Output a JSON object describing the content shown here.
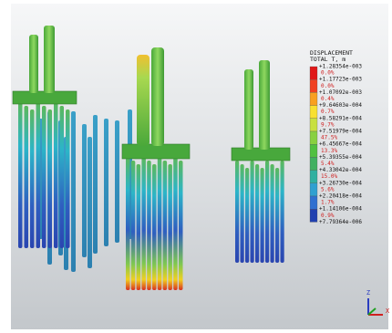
{
  "legend": {
    "title": "DISPLACEMENT",
    "subtitle": "TOTAL T, m",
    "levels": [
      "+1.28354e-003",
      "+1.17723e-003",
      "+1.07092e-003",
      "+9.64603e-004",
      "+8.58291e-004",
      "+7.51979e-004",
      "+6.45667e-004",
      "+5.39355e-004",
      "+4.33042e-004",
      "+3.26730e-004",
      "+2.20418e-004",
      "+1.14106e-004",
      "+7.79364e-006"
    ],
    "percents": [
      "0.0%",
      "0.0%",
      "0.4%",
      "0.7%",
      "9.7%",
      "47.5%",
      "13.3%",
      "5.4%",
      "15.0%",
      "5.6%",
      "1.7%",
      "0.9%"
    ]
  },
  "axes": {
    "z": "Z",
    "x": "X"
  }
}
